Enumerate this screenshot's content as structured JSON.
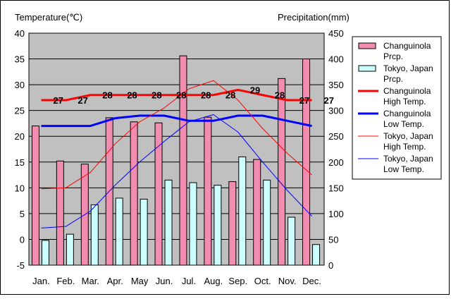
{
  "chart_data": {
    "type": "bar",
    "title": "",
    "ylabel_left": "Temperature(℃)",
    "ylabel_right": "Precipitation(mm)",
    "ylim_left": [
      -5,
      40
    ],
    "ylim_right": [
      0,
      450
    ],
    "yticks_left": [
      "40",
      "35",
      "30",
      "25",
      "20",
      "15",
      "10",
      "5",
      "0",
      "-5"
    ],
    "yticks_right": [
      "450",
      "400",
      "350",
      "300",
      "250",
      "200",
      "150",
      "100",
      "50",
      "0"
    ],
    "categories": [
      "Jan.",
      "Feb.",
      "Mar.",
      "Apr.",
      "May",
      "Jun.",
      "Jul.",
      "Aug.",
      "Sep.",
      "Oct.",
      "Nov.",
      "Dec."
    ],
    "grid": true,
    "legend_position": "right",
    "bar_series": [
      {
        "name": "Changuinola Prcp.",
        "color": "#f28cb1",
        "values": [
          270,
          202,
          196,
          286,
          278,
          276,
          406,
          287,
          162,
          205,
          362,
          400
        ]
      },
      {
        "name": "Tokyo, Japan Prcp.",
        "color": "#ccffff",
        "values": [
          48,
          60,
          117,
          130,
          128,
          165,
          160,
          155,
          210,
          165,
          93,
          40
        ]
      }
    ],
    "line_series": [
      {
        "name": "Changuinola High Temp.",
        "color": "#ff0000",
        "width": 3,
        "values": [
          27,
          27,
          28,
          28,
          28,
          28,
          28,
          28,
          29,
          28,
          27,
          27
        ]
      },
      {
        "name": "Changuinola Low Temp.",
        "color": "#0000ff",
        "width": 3,
        "values": [
          22,
          22,
          22,
          23.5,
          24,
          24,
          23,
          23,
          24,
          24,
          23,
          22
        ]
      },
      {
        "name": "Tokyo, Japan High Temp.",
        "color": "#ff0000",
        "width": 1,
        "values": [
          9.8,
          10,
          13,
          18.5,
          22.8,
          25.5,
          29.2,
          30.8,
          27,
          21.5,
          16.7,
          12.5
        ]
      },
      {
        "name": "Tokyo, Japan Low Temp.",
        "color": "#0000ff",
        "width": 1,
        "values": [
          2.2,
          2.5,
          5.5,
          10.5,
          15,
          19,
          22.8,
          24.2,
          20.8,
          15,
          9.5,
          4.5
        ]
      }
    ],
    "data_labels": [
      "27",
      "27",
      "28",
      "28",
      "28",
      "28",
      "28",
      "28",
      "29",
      "28",
      "27",
      "27"
    ],
    "legend": [
      {
        "kind": "bar",
        "color": "#f28cb1",
        "lines": [
          "Changuinola",
          "Prcp."
        ]
      },
      {
        "kind": "bar",
        "color": "#ccffff",
        "lines": [
          "Tokyo, Japan",
          "Prcp."
        ]
      },
      {
        "kind": "line",
        "color": "#ff0000",
        "width": 3,
        "lines": [
          "Changuinola",
          "High Temp."
        ]
      },
      {
        "kind": "line",
        "color": "#0000ff",
        "width": 3,
        "lines": [
          "Changuinola",
          "Low Temp."
        ]
      },
      {
        "kind": "line",
        "color": "#ff0000",
        "width": 1,
        "lines": [
          "Tokyo, Japan",
          "High Temp."
        ]
      },
      {
        "kind": "line",
        "color": "#0000ff",
        "width": 1,
        "lines": [
          "Tokyo, Japan",
          "Low Temp."
        ]
      }
    ],
    "plot_background": "#c0c0c0"
  }
}
